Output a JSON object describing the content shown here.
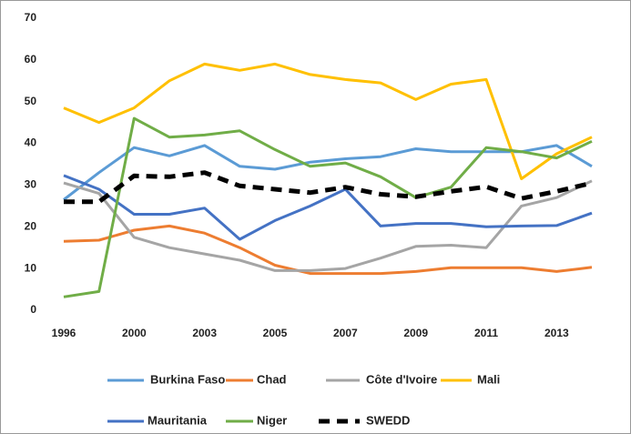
{
  "chart_data": {
    "type": "line",
    "categories": [
      "1996",
      null,
      "2000",
      null,
      "2003",
      null,
      "2005",
      null,
      "2007",
      null,
      "2009",
      null,
      "2011",
      null,
      "2013",
      null
    ],
    "ylim": [
      0,
      70
    ],
    "yticks": [
      0,
      10,
      20,
      30,
      40,
      50,
      60,
      70
    ],
    "grid": false,
    "series": [
      {
        "name": "Burkina Faso",
        "color": "#5b9bd5",
        "values": [
          26.5,
          33,
          39,
          37,
          39.5,
          34.5,
          33.8,
          35.5,
          36.3,
          36.8,
          38.7,
          38,
          38,
          38,
          39.5,
          34.5
        ]
      },
      {
        "name": "Chad",
        "color": "#ed7d31",
        "values": [
          16.5,
          16.8,
          19.2,
          20.2,
          18.5,
          15,
          10.8,
          8.8,
          8.8,
          8.8,
          9.3,
          10.2,
          10.2,
          10.2,
          9.3,
          10.3
        ]
      },
      {
        "name": "Côte d'Ivoire",
        "color": "#a5a5a5",
        "values": [
          30.5,
          28,
          17.5,
          15,
          13.5,
          12,
          9.5,
          9.5,
          10,
          12.5,
          15.3,
          15.6,
          15,
          25,
          27,
          31
        ]
      },
      {
        "name": "Mali",
        "color": "#ffc000",
        "values": [
          48.5,
          45,
          48.5,
          55,
          59,
          57.5,
          59,
          56.5,
          55.3,
          54.5,
          50.5,
          54.2,
          55.3,
          31.5,
          37.5,
          41.5
        ]
      },
      {
        "name": "Mauritania",
        "color": "#4472c4",
        "values": [
          32.3,
          29,
          23,
          23,
          24.5,
          17,
          21.5,
          25,
          29,
          20.2,
          20.8,
          20.8,
          20,
          20.2,
          20.3,
          23.3
        ]
      },
      {
        "name": "Niger",
        "color": "#70ad47",
        "values": [
          3.2,
          4.5,
          46,
          41.5,
          42,
          43,
          38.5,
          34.5,
          35.3,
          32,
          27,
          29.5,
          39,
          38,
          36.5,
          40.5
        ]
      },
      {
        "name": "SWEDD",
        "color": "#000000",
        "dashed": true,
        "values": [
          26,
          26,
          32.2,
          32,
          33,
          29.8,
          29,
          28.2,
          29.5,
          27.8,
          27.2,
          28.5,
          29.6,
          26.8,
          28.5,
          30.5
        ]
      }
    ]
  }
}
